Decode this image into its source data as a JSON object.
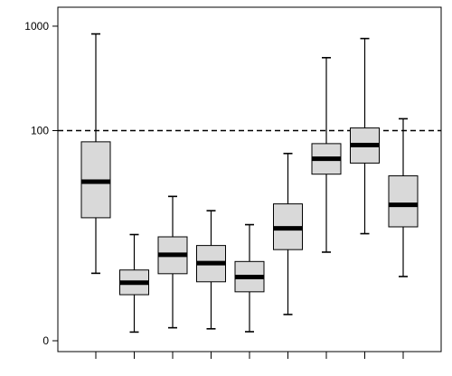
{
  "chart_data": {
    "type": "box",
    "title": "",
    "xlabel": "",
    "ylabel": "",
    "y_scale": "symlog",
    "yticks": [
      0,
      100,
      1000
    ],
    "ytick_labels": [
      "0",
      "100",
      "1000"
    ],
    "ylim": [
      -0.05,
      1400
    ],
    "reference_line": {
      "y": 100,
      "style": "dashed"
    },
    "grid": false,
    "categories": [
      "",
      "",
      "",
      "",
      "",
      "",
      "",
      "",
      ""
    ],
    "series": [
      {
        "whisker_low": 3.4,
        "q1": 13.9,
        "median": 31.9,
        "q3": 78,
        "whisker_high": 843
      },
      {
        "whisker_low": 0.21,
        "q1": 1.75,
        "median": 2.58,
        "q3": 3.73,
        "whisker_high": 9.3
      },
      {
        "whisker_low": 0.33,
        "q1": 3.36,
        "median": 5.61,
        "q3": 8.8,
        "whisker_high": 22.8
      },
      {
        "whisker_low": 0.3,
        "q1": 2.65,
        "median": 4.5,
        "q3": 7.1,
        "whisker_high": 16.4
      },
      {
        "whisker_low": 0.22,
        "q1": 1.93,
        "median": 3.05,
        "q3": 4.7,
        "whisker_high": 11.8
      },
      {
        "whisker_low": 0.78,
        "q1": 6.4,
        "median": 10.8,
        "q3": 19.2,
        "whisker_high": 60.1
      },
      {
        "whisker_low": 6.0,
        "q1": 37.8,
        "median": 53.5,
        "q3": 74.9,
        "whisker_high": 500
      },
      {
        "whisker_low": 9.5,
        "q1": 48.5,
        "median": 72.6,
        "q3": 106,
        "whisker_high": 762
      },
      {
        "whisker_low": 3.1,
        "q1": 11.2,
        "median": 18.8,
        "q3": 36.4,
        "whisker_high": 130
      }
    ]
  }
}
